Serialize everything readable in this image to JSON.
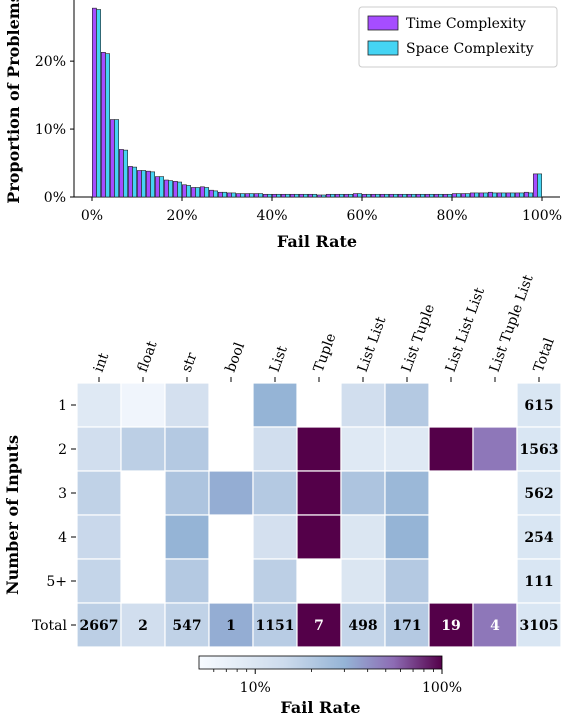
{
  "chart_data": [
    {
      "type": "bar",
      "xlabel": "Fail Rate",
      "ylabel": "Proportion of Problems",
      "xticks": [
        "0%",
        "20%",
        "40%",
        "60%",
        "80%",
        "100%"
      ],
      "yticks": [
        "0%",
        "10%",
        "20%"
      ],
      "ylim": [
        0,
        29
      ],
      "xlim": [
        -4,
        104
      ],
      "legend_position": "top-right",
      "grid": false,
      "x": [
        1,
        3,
        5,
        7,
        9,
        11,
        13,
        15,
        17,
        19,
        21,
        23,
        25,
        27,
        29,
        31,
        33,
        35,
        37,
        39,
        41,
        43,
        45,
        47,
        49,
        51,
        53,
        55,
        57,
        59,
        61,
        63,
        65,
        67,
        69,
        71,
        73,
        75,
        77,
        79,
        81,
        83,
        85,
        87,
        89,
        91,
        93,
        95,
        97,
        99
      ],
      "series": [
        {
          "name": "Time Complexity",
          "color": "#a64dff",
          "values": [
            27.8,
            21.3,
            11.4,
            7.0,
            4.5,
            3.9,
            3.8,
            3.0,
            2.5,
            2.3,
            1.8,
            1.4,
            1.5,
            1.0,
            0.7,
            0.6,
            0.5,
            0.5,
            0.5,
            0.4,
            0.4,
            0.4,
            0.4,
            0.4,
            0.4,
            0.3,
            0.4,
            0.4,
            0.4,
            0.5,
            0.4,
            0.4,
            0.4,
            0.4,
            0.4,
            0.4,
            0.4,
            0.4,
            0.4,
            0.4,
            0.5,
            0.5,
            0.6,
            0.6,
            0.7,
            0.6,
            0.6,
            0.6,
            0.7,
            3.4
          ]
        },
        {
          "name": "Space Complexity",
          "color": "#45d4f3",
          "values": [
            27.6,
            21.1,
            11.4,
            6.9,
            4.4,
            3.9,
            3.7,
            3.0,
            2.4,
            2.2,
            1.7,
            1.4,
            1.4,
            0.9,
            0.7,
            0.6,
            0.5,
            0.5,
            0.5,
            0.4,
            0.4,
            0.4,
            0.4,
            0.4,
            0.4,
            0.3,
            0.4,
            0.4,
            0.4,
            0.5,
            0.4,
            0.4,
            0.4,
            0.4,
            0.4,
            0.4,
            0.4,
            0.4,
            0.4,
            0.4,
            0.5,
            0.5,
            0.6,
            0.6,
            0.6,
            0.6,
            0.6,
            0.6,
            0.6,
            3.4
          ]
        }
      ]
    },
    {
      "type": "heatmap",
      "columns": [
        "int",
        "float",
        "str",
        "bool",
        "List",
        "Tuple",
        "List List",
        "List Tuple",
        "List List List",
        "List Tuple List",
        "Total"
      ],
      "rows": [
        "1",
        "2",
        "3",
        "4",
        "5+",
        "Total"
      ],
      "ylabel": "Number of Inputs",
      "colorbar_label": "Fail Rate",
      "colorbar_ticks": [
        "10%",
        "100%"
      ],
      "colorbar_scale": "log",
      "fail_rates": [
        [
          0.09,
          0.06,
          0.12,
          null,
          0.3,
          null,
          0.13,
          0.2,
          null,
          null
        ],
        [
          0.13,
          0.18,
          0.2,
          null,
          0.13,
          1.0,
          0.09,
          0.09,
          1.0,
          0.5
        ],
        [
          0.17,
          null,
          0.22,
          0.32,
          0.2,
          1.0,
          0.22,
          0.28,
          null,
          null
        ],
        [
          0.15,
          null,
          0.3,
          null,
          0.12,
          1.0,
          0.1,
          0.3,
          null,
          null
        ],
        [
          0.16,
          null,
          0.2,
          null,
          0.18,
          null,
          0.1,
          0.2,
          null,
          null
        ],
        [
          0.18,
          0.13,
          0.17,
          0.32,
          0.19,
          1.0,
          0.16,
          0.2,
          1.0,
          0.5
        ]
      ],
      "counts": [
        [
          null,
          null,
          null,
          null,
          null,
          null,
          null,
          null,
          null,
          null,
          "615"
        ],
        [
          null,
          null,
          null,
          null,
          null,
          null,
          null,
          null,
          null,
          null,
          "1563"
        ],
        [
          null,
          null,
          null,
          null,
          null,
          null,
          null,
          null,
          null,
          null,
          "562"
        ],
        [
          null,
          null,
          null,
          null,
          null,
          null,
          null,
          null,
          null,
          null,
          "254"
        ],
        [
          null,
          null,
          null,
          null,
          null,
          null,
          null,
          null,
          null,
          null,
          "111"
        ],
        [
          "2667",
          "2",
          "547",
          "1",
          "1151",
          "7",
          "498",
          "171",
          "19",
          "4",
          "3105"
        ]
      ]
    }
  ]
}
